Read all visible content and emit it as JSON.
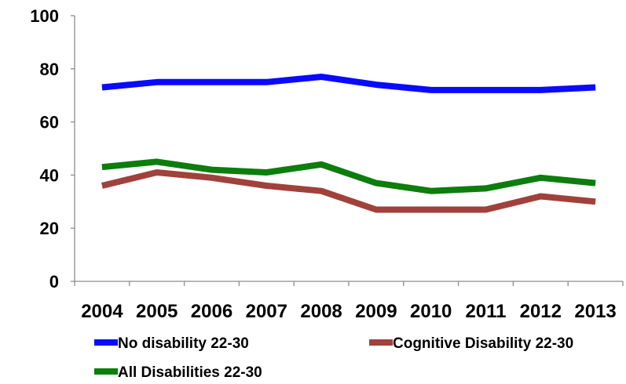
{
  "chart_data": {
    "type": "line",
    "title": "",
    "xlabel": "",
    "ylabel": "",
    "categories": [
      "2004",
      "2005",
      "2006",
      "2007",
      "2008",
      "2009",
      "2010",
      "2011",
      "2012",
      "2013"
    ],
    "ylim": [
      0,
      100
    ],
    "y_ticks": [
      "0",
      "20",
      "40",
      "60",
      "80",
      "100"
    ],
    "grid": false,
    "legend_position": "bottom",
    "series": [
      {
        "name": "No disability 22-30",
        "color": "#0a0aff",
        "values": [
          73,
          75,
          75,
          75,
          77,
          74,
          72,
          72,
          72,
          73
        ]
      },
      {
        "name": "Cognitive Disability 22-30",
        "color": "#a0413c",
        "values": [
          36,
          41,
          39,
          36,
          34,
          27,
          27,
          27,
          32,
          30
        ]
      },
      {
        "name": "All Disabilities 22-30",
        "color": "#0d7d0d",
        "values": [
          43,
          45,
          42,
          41,
          44,
          37,
          34,
          35,
          39,
          37
        ]
      }
    ]
  }
}
